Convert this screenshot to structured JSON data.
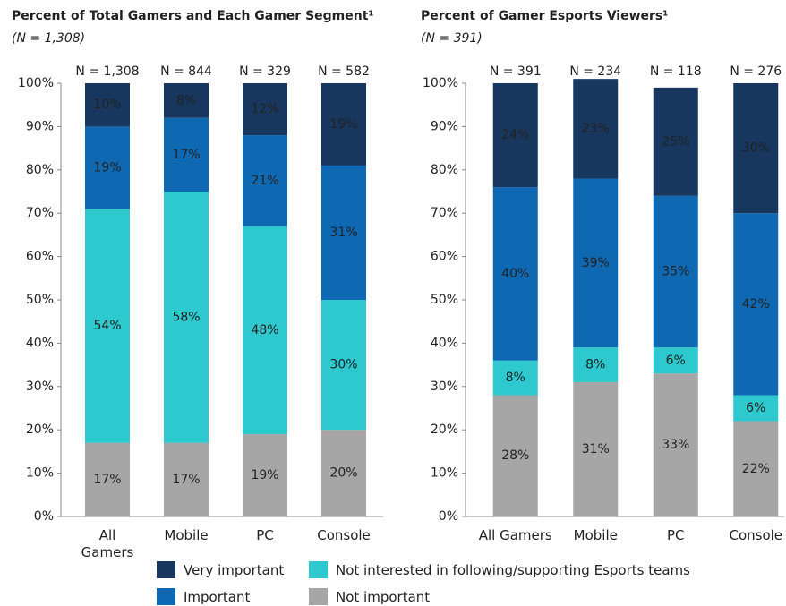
{
  "chart_data": [
    {
      "type": "stacked_bar",
      "title": "Percent of Total Gamers and Each Gamer Segment¹",
      "subtitle": "(N = 1,308)",
      "categories": [
        "All Gamers",
        "Mobile",
        "PC",
        "Console"
      ],
      "annotations": [
        "N = 1,308",
        "N = 844",
        "N = 329",
        "N = 582"
      ],
      "ylim": [
        0,
        100
      ],
      "yticks": [
        {
          "value": 0,
          "label": "0%"
        },
        {
          "value": 10,
          "label": "10%"
        },
        {
          "value": 20,
          "label": "20%"
        },
        {
          "value": 30,
          "label": "30%"
        },
        {
          "value": 40,
          "label": "40%"
        },
        {
          "value": 50,
          "label": "50%"
        },
        {
          "value": 60,
          "label": "60%"
        },
        {
          "value": 70,
          "label": "70%"
        },
        {
          "value": 80,
          "label": "80%"
        },
        {
          "value": 90,
          "label": "90%"
        },
        {
          "value": 100,
          "label": "100%"
        }
      ],
      "series": [
        {
          "name": "Not important",
          "color": "#a6a6a6",
          "values": [
            17,
            17,
            19,
            20
          ],
          "value_labels": [
            "17%",
            "17%",
            "19%",
            "20%"
          ]
        },
        {
          "name": "Not interested in following/supporting Esports teams",
          "color": "#2ec9cf",
          "values": [
            54,
            58,
            48,
            30
          ],
          "value_labels": [
            "54%",
            "58%",
            "48%",
            "30%"
          ]
        },
        {
          "name": "Important",
          "color": "#0f68b2",
          "values": [
            19,
            17,
            21,
            31
          ],
          "value_labels": [
            "19%",
            "17%",
            "21%",
            "31%"
          ]
        },
        {
          "name": "Very important",
          "color": "#17375e",
          "values": [
            10,
            8,
            12,
            19
          ],
          "value_labels": [
            "10%",
            "8%",
            "12%",
            "19%"
          ]
        }
      ]
    },
    {
      "type": "stacked_bar",
      "title": "Percent of Gamer Esports Viewers¹",
      "subtitle": "(N = 391)",
      "categories": [
        "All Gamers",
        "Mobile",
        "PC",
        "Console"
      ],
      "annotations": [
        "N = 391",
        "N = 234",
        "N = 118",
        "N = 276"
      ],
      "ylim": [
        0,
        100
      ],
      "yticks": [
        {
          "value": 0,
          "label": "0%"
        },
        {
          "value": 10,
          "label": "10%"
        },
        {
          "value": 20,
          "label": "20%"
        },
        {
          "value": 30,
          "label": "30%"
        },
        {
          "value": 40,
          "label": "40%"
        },
        {
          "value": 50,
          "label": "50%"
        },
        {
          "value": 60,
          "label": "60%"
        },
        {
          "value": 70,
          "label": "70%"
        },
        {
          "value": 80,
          "label": "80%"
        },
        {
          "value": 90,
          "label": "90%"
        },
        {
          "value": 100,
          "label": "100%"
        }
      ],
      "series": [
        {
          "color": "#a6a6a6",
          "values": [
            28,
            31,
            33,
            22
          ],
          "value_labels": [
            "28%",
            "31%",
            "33%",
            "22%"
          ]
        },
        {
          "color": "#2ec9cf",
          "values": [
            8,
            8,
            6,
            6
          ],
          "value_labels": [
            "8%",
            "8%",
            "6%",
            "6%"
          ]
        },
        {
          "color": "#0f68b2",
          "values": [
            40,
            39,
            35,
            42
          ],
          "value_labels": [
            "40%",
            "39%",
            "35%",
            "42%"
          ]
        },
        {
          "color": "#17375e",
          "values": [
            24,
            23,
            25,
            30
          ],
          "value_labels": [
            "24%",
            "23%",
            "25%",
            "30%"
          ]
        }
      ]
    }
  ]
}
